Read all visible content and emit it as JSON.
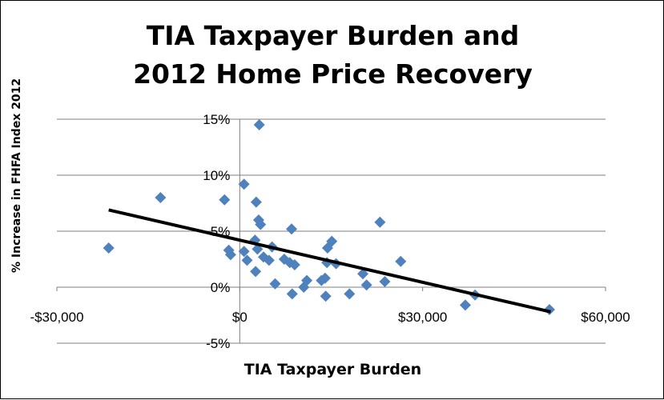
{
  "chart_data": {
    "type": "scatter",
    "title_line1": "TIA Taxpayer Burden and",
    "title_line2": "2012 Home Price Recovery",
    "xlabel": "TIA Taxpayer Burden",
    "ylabel": "% Increase in FHFA Index 2012",
    "xlim": [
      -30000,
      60000
    ],
    "ylim": [
      -5,
      15
    ],
    "x_ticks": [
      -30000,
      0,
      30000,
      60000
    ],
    "x_tick_labels": [
      "-$30,000",
      "$0",
      "$30,000",
      "$60,000"
    ],
    "y_ticks": [
      -5,
      0,
      5,
      10,
      15
    ],
    "y_tick_labels": [
      "-5%",
      "0%",
      "5%",
      "10%",
      "15%"
    ],
    "grid": "horizontal",
    "marker_color": "#4F81BD",
    "trendline": {
      "x": [
        -21500,
        51000
      ],
      "y": [
        6.9,
        -2.2
      ],
      "color": "#000000"
    },
    "points": [
      {
        "x": 3200,
        "y": 14.5
      },
      {
        "x": 700,
        "y": 9.2
      },
      {
        "x": -13000,
        "y": 8.0
      },
      {
        "x": -2500,
        "y": 7.8
      },
      {
        "x": 2700,
        "y": 7.6
      },
      {
        "x": 3100,
        "y": 6.0
      },
      {
        "x": 3400,
        "y": 5.6
      },
      {
        "x": 8500,
        "y": 5.2
      },
      {
        "x": 23000,
        "y": 5.8
      },
      {
        "x": -21500,
        "y": 3.5
      },
      {
        "x": -1800,
        "y": 3.3
      },
      {
        "x": -1500,
        "y": 2.9
      },
      {
        "x": 700,
        "y": 3.2
      },
      {
        "x": 1200,
        "y": 2.4
      },
      {
        "x": 2500,
        "y": 4.2
      },
      {
        "x": 2900,
        "y": 3.4
      },
      {
        "x": 3900,
        "y": 2.7
      },
      {
        "x": 4800,
        "y": 2.4
      },
      {
        "x": 5300,
        "y": 3.6
      },
      {
        "x": 2600,
        "y": 1.4
      },
      {
        "x": 7300,
        "y": 2.5
      },
      {
        "x": 8200,
        "y": 2.2
      },
      {
        "x": 9000,
        "y": 2.0
      },
      {
        "x": 14400,
        "y": 3.5
      },
      {
        "x": 15100,
        "y": 4.1
      },
      {
        "x": 14300,
        "y": 2.2
      },
      {
        "x": 15800,
        "y": 2.1
      },
      {
        "x": 26400,
        "y": 2.3
      },
      {
        "x": 20200,
        "y": 1.2
      },
      {
        "x": 23800,
        "y": 0.5
      },
      {
        "x": 5800,
        "y": 0.3
      },
      {
        "x": 10500,
        "y": 0.0
      },
      {
        "x": 11000,
        "y": 0.6
      },
      {
        "x": 13400,
        "y": 0.6
      },
      {
        "x": 14000,
        "y": 0.8
      },
      {
        "x": 8600,
        "y": -0.6
      },
      {
        "x": 14100,
        "y": -0.8
      },
      {
        "x": 18000,
        "y": -0.6
      },
      {
        "x": 20800,
        "y": 0.2
      },
      {
        "x": 38600,
        "y": -0.7
      },
      {
        "x": 37000,
        "y": -1.6
      },
      {
        "x": 50800,
        "y": -2.0
      }
    ]
  }
}
